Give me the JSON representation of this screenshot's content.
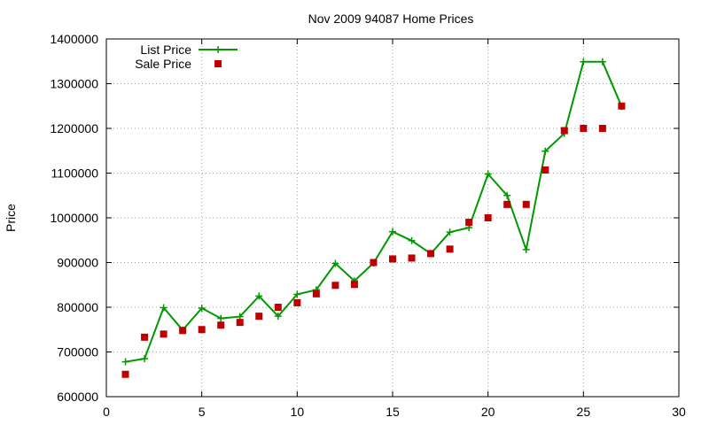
{
  "chart_data": {
    "type": "line",
    "title": "Nov 2009 94087 Home Prices",
    "xlabel": "",
    "ylabel": "Price",
    "xlim": [
      0,
      30
    ],
    "ylim": [
      600000,
      1400000
    ],
    "xticks": [
      0,
      5,
      10,
      15,
      20,
      25,
      30
    ],
    "yticks": [
      600000,
      700000,
      800000,
      900000,
      1000000,
      1100000,
      1200000,
      1300000,
      1400000
    ],
    "grid": true,
    "legend_position": "top-left",
    "series": [
      {
        "name": "List Price",
        "style": "line+cross",
        "color": "#009900",
        "points": [
          [
            1,
            678000
          ],
          [
            2,
            685000
          ],
          [
            3,
            799000
          ],
          [
            4,
            749000
          ],
          [
            5,
            798000
          ],
          [
            6,
            775000
          ],
          [
            7,
            779000
          ],
          [
            8,
            825000
          ],
          [
            9,
            780000
          ],
          [
            10,
            829000
          ],
          [
            11,
            839000
          ],
          [
            12,
            898000
          ],
          [
            13,
            859000
          ],
          [
            14,
            899000
          ],
          [
            15,
            969000
          ],
          [
            16,
            949000
          ],
          [
            17,
            920000
          ],
          [
            18,
            968000
          ],
          [
            19,
            978000
          ],
          [
            20,
            1098000
          ],
          [
            21,
            1050000
          ],
          [
            22,
            929000
          ],
          [
            23,
            1149000
          ],
          [
            24,
            1189000
          ],
          [
            25,
            1349000
          ],
          [
            26,
            1349000
          ],
          [
            27,
            1249000
          ]
        ]
      },
      {
        "name": "Sale Price",
        "style": "square",
        "color": "#c00000",
        "points": [
          [
            1,
            650000
          ],
          [
            2,
            733000
          ],
          [
            3,
            740000
          ],
          [
            4,
            748000
          ],
          [
            5,
            750000
          ],
          [
            6,
            760000
          ],
          [
            7,
            766000
          ],
          [
            8,
            780000
          ],
          [
            9,
            800000
          ],
          [
            10,
            810000
          ],
          [
            11,
            830000
          ],
          [
            12,
            849000
          ],
          [
            13,
            851000
          ],
          [
            14,
            900000
          ],
          [
            15,
            908000
          ],
          [
            16,
            910000
          ],
          [
            17,
            920000
          ],
          [
            18,
            930000
          ],
          [
            19,
            990000
          ],
          [
            20,
            1000000
          ],
          [
            21,
            1030000
          ],
          [
            22,
            1030000
          ],
          [
            23,
            1107000
          ],
          [
            24,
            1195000
          ],
          [
            25,
            1200000
          ],
          [
            26,
            1200000
          ],
          [
            27,
            1250000
          ]
        ]
      }
    ]
  }
}
